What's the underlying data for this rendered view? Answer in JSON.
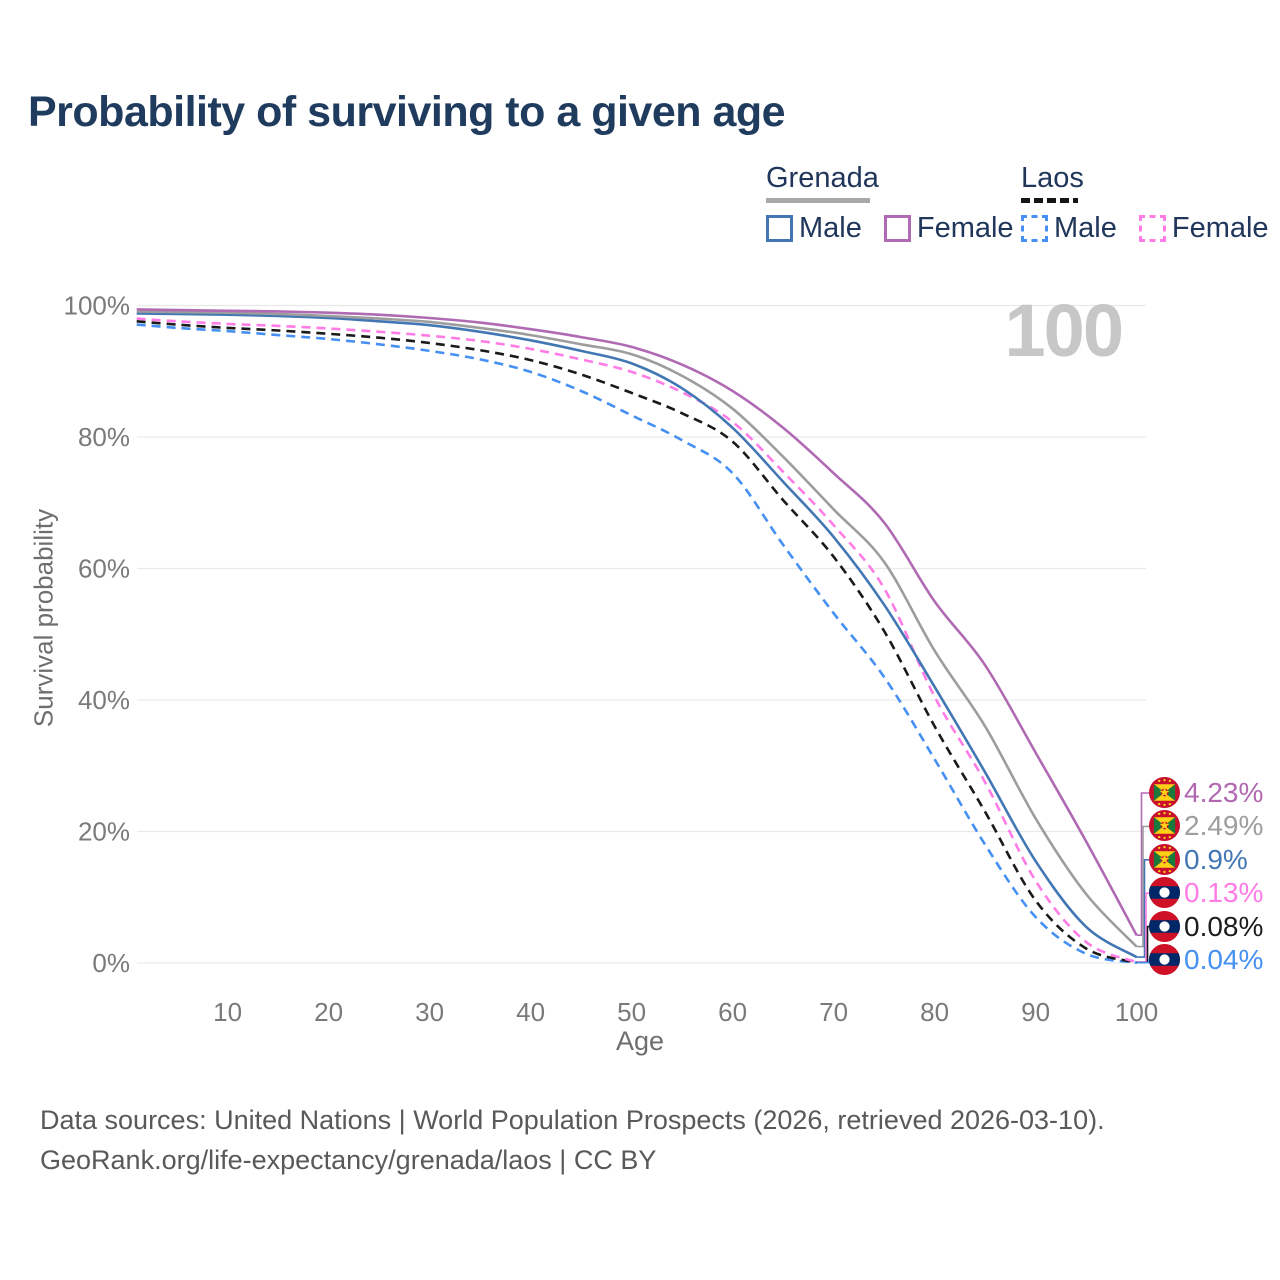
{
  "title": "Probability of surviving to a given age",
  "watermark": "100",
  "legend": {
    "grenada": {
      "name": "Grenada",
      "line_style": "solid",
      "header_bar_color": "#a8a8a8",
      "male_label": "Male",
      "male_color": "#4377b4",
      "female_label": "Female",
      "female_color": "#b06ab3"
    },
    "laos": {
      "name": "Laos",
      "line_style": "dashed",
      "header_bar_color": "#151515",
      "male_label": "Male",
      "male_color": "#4590f2",
      "female_label": "Female",
      "female_color": "#ff7ce6"
    }
  },
  "axes": {
    "x": {
      "label": "Age",
      "ticks": [
        10,
        20,
        30,
        40,
        50,
        60,
        70,
        80,
        90,
        100
      ]
    },
    "y": {
      "label": "Survival probability",
      "ticks": [
        "0%",
        "20%",
        "40%",
        "60%",
        "80%",
        "100%"
      ],
      "tick_values": [
        0,
        20,
        40,
        60,
        80,
        100
      ]
    }
  },
  "chart_data": {
    "type": "line",
    "title": "Probability of surviving to a given age",
    "xlabel": "Age",
    "ylabel": "Survival probability",
    "xlim": [
      1,
      100
    ],
    "ylim": [
      0,
      100
    ],
    "grid": "horizontal",
    "legend_position": "top-right",
    "x_ages": [
      1,
      5,
      10,
      15,
      20,
      25,
      30,
      35,
      40,
      45,
      50,
      55,
      60,
      65,
      70,
      75,
      80,
      85,
      90,
      95,
      100
    ],
    "series": [
      {
        "key": "grenada_female",
        "name": "Grenada Female",
        "country": "Grenada",
        "sex": "Female",
        "style": "solid",
        "color": "#b06ab3",
        "end_label": "4.23%",
        "values": [
          99.4,
          99.3,
          99.2,
          99.1,
          98.9,
          98.6,
          98.1,
          97.4,
          96.4,
          95.2,
          93.7,
          91.0,
          87.0,
          81.4,
          74.5,
          67.0,
          55.0,
          45.3,
          32.0,
          18.5,
          4.23
        ]
      },
      {
        "key": "grenada_all",
        "name": "Grenada Both sexes",
        "country": "Grenada",
        "sex": "Both",
        "style": "solid",
        "color": "#9d9d9d",
        "end_label": "2.49%",
        "values": [
          99.1,
          99.0,
          98.9,
          98.7,
          98.4,
          98.0,
          97.5,
          96.6,
          95.5,
          94.1,
          92.6,
          89.3,
          84.3,
          77.0,
          69.0,
          61.0,
          47.5,
          36.0,
          22.0,
          10.5,
          2.49
        ]
      },
      {
        "key": "grenada_male",
        "name": "Grenada Male",
        "country": "Grenada",
        "sex": "Male",
        "style": "solid",
        "color": "#4377b4",
        "end_label": "0.9%",
        "values": [
          98.8,
          98.7,
          98.6,
          98.4,
          98.1,
          97.6,
          97.0,
          96.0,
          94.7,
          93.1,
          91.2,
          87.4,
          81.4,
          73.2,
          64.8,
          54.5,
          42.0,
          29.0,
          15.5,
          5.5,
          0.9
        ]
      },
      {
        "key": "laos_female",
        "name": "Laos Female",
        "country": "Laos",
        "sex": "Female",
        "style": "dashed",
        "color": "#ff7ce6",
        "end_label": "0.13%",
        "values": [
          98.0,
          97.6,
          97.2,
          96.9,
          96.5,
          96.0,
          95.4,
          94.6,
          93.4,
          91.8,
          89.9,
          86.8,
          82.3,
          74.7,
          66.6,
          57.0,
          40.5,
          27.5,
          12.5,
          3.2,
          0.13
        ]
      },
      {
        "key": "laos_all",
        "name": "Laos Both sexes",
        "country": "Laos",
        "sex": "Both",
        "style": "dashed",
        "color": "#1a1a1a",
        "end_label": "0.08%",
        "values": [
          97.6,
          97.1,
          96.6,
          96.2,
          95.7,
          95.1,
          94.3,
          93.2,
          91.7,
          89.5,
          86.7,
          83.6,
          79.3,
          70.4,
          61.8,
          50.5,
          36.0,
          23.0,
          9.5,
          2.2,
          0.08
        ]
      },
      {
        "key": "laos_male",
        "name": "Laos Male",
        "country": "Laos",
        "sex": "Male",
        "style": "dashed",
        "color": "#4590f2",
        "end_label": "0.04%",
        "values": [
          97.1,
          96.6,
          96.1,
          95.5,
          94.9,
          94.1,
          93.1,
          91.8,
          89.9,
          87.0,
          83.3,
          79.5,
          74.5,
          63.6,
          53.2,
          43.5,
          31.0,
          18.0,
          7.0,
          1.4,
          0.04
        ]
      }
    ]
  },
  "end_labels": [
    {
      "value": "4.23%",
      "color": "#b168b1",
      "flag": "grenada",
      "series": "Grenada Female"
    },
    {
      "value": "2.49%",
      "color": "#9e9e9e",
      "flag": "grenada",
      "series": "Grenada Both sexes"
    },
    {
      "value": "0.9%",
      "color": "#4377b4",
      "flag": "grenada",
      "series": "Grenada Male"
    },
    {
      "value": "0.13%",
      "color": "#ff7ce6",
      "flag": "laos",
      "series": "Laos Female"
    },
    {
      "value": "0.08%",
      "color": "#1c1c1c",
      "flag": "laos",
      "series": "Laos Both sexes"
    },
    {
      "value": "0.04%",
      "color": "#4590f2",
      "flag": "laos",
      "series": "Laos Male"
    }
  ],
  "footer": {
    "line1": "Data sources: United Nations | World Population Prospects (2026, retrieved 2026-03-10).",
    "line2": "GeoRank.org/life-expectancy/grenada/laos | CC BY"
  },
  "colors": {
    "title_text": "#1f3b5e",
    "legend_text": "#20365a",
    "axis_text": "#7a7a7a",
    "gridline": "#e9e9e9",
    "watermark": "#c7c7c7",
    "footer_text": "#595959"
  }
}
